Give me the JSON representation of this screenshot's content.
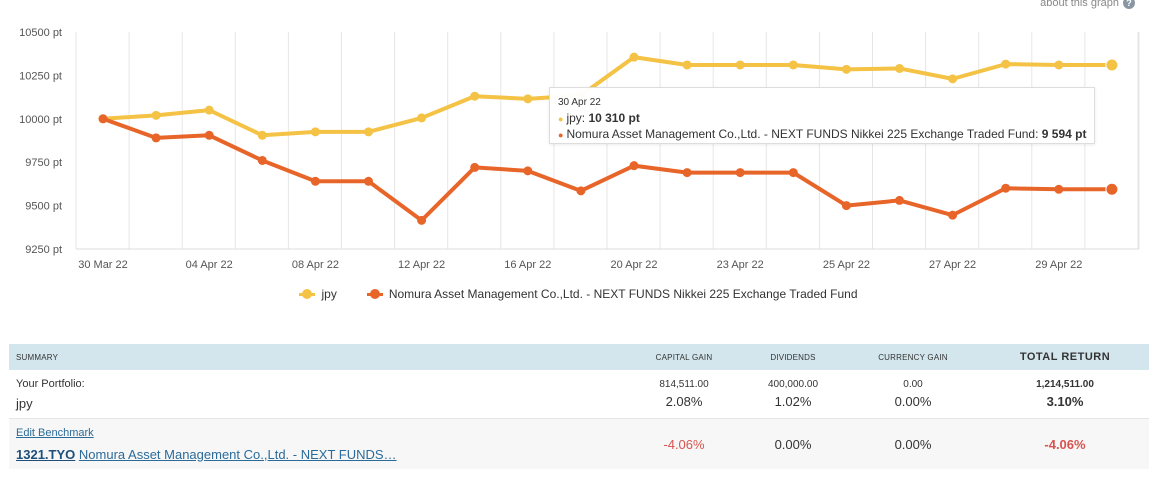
{
  "about": {
    "label": "about this graph",
    "icon": "help-icon"
  },
  "chart_data": {
    "type": "line",
    "ylim": [
      9250,
      10500
    ],
    "y_ticks": [
      9250,
      9500,
      9750,
      10000,
      10250,
      10500
    ],
    "y_tick_labels": [
      "9250 pt",
      "9500 pt",
      "9750 pt",
      "10000 pt",
      "10250 pt",
      "10500 pt"
    ],
    "x": [
      "30 Mar 22",
      "1 Apr 22",
      "04 Apr 22",
      "5 Apr 22",
      "08 Apr 22",
      "11 Apr 22",
      "12 Apr 22",
      "14 Apr 22",
      "16 Apr 22",
      "19 Apr 22",
      "20 Apr 22",
      "21 Apr 22",
      "23 Apr 22",
      "24 Apr 22",
      "25 Apr 22",
      "26 Apr 22",
      "27 Apr 22",
      "28 Apr 22",
      "29 Apr 22",
      "30 Apr 22"
    ],
    "x_tick_labels": [
      "30 Mar 22",
      "04 Apr 22",
      "08 Apr 22",
      "12 Apr 22",
      "16 Apr 22",
      "20 Apr 22",
      "23 Apr 22",
      "25 Apr 22",
      "27 Apr 22",
      "29 Apr 22"
    ],
    "grid": true,
    "legend_position": "bottom",
    "series": [
      {
        "name": "jpy",
        "color": "#f4c244",
        "values": [
          10000,
          10020,
          10050,
          9905,
          9925,
          9925,
          10005,
          10130,
          10115,
          10135,
          10355,
          10310,
          10310,
          10310,
          10285,
          10290,
          10230,
          10315,
          10310,
          10310
        ]
      },
      {
        "name": "Nomura Asset Management Co.,Ltd. - NEXT FUNDS Nikkei 225 Exchange Traded Fund",
        "color": "#e8652a",
        "values": [
          10000,
          9890,
          9905,
          9760,
          9640,
          9640,
          9415,
          9720,
          9700,
          9585,
          9730,
          9690,
          9690,
          9690,
          9500,
          9530,
          9445,
          9600,
          9594,
          9594
        ]
      }
    ]
  },
  "tooltip": {
    "date": "30 Apr 22",
    "rows": [
      {
        "label": "jpy: ",
        "value": "10 310 pt",
        "color": "#f4c244"
      },
      {
        "label": "Nomura Asset Management Co.,Ltd. - NEXT FUNDS Nikkei 225 Exchange Traded Fund: ",
        "value": "9 594 pt",
        "color": "#e8652a"
      }
    ]
  },
  "summary": {
    "headers": {
      "summary": "Summary",
      "capital_gain": "Capital Gain",
      "dividends": "Dividends",
      "currency_gain": "Currency Gain",
      "total_return": "Total Return"
    },
    "portfolio": {
      "label": "Your Portfolio:",
      "name": "jpy",
      "capital_gain_amount": "814,511.00",
      "capital_gain_pct": "2.08%",
      "dividends_amount": "400,000.00",
      "dividends_pct": "1.02%",
      "currency_gain_amount": "0.00",
      "currency_gain_pct": "0.00%",
      "total_return_amount": "1,214,511.00",
      "total_return_pct": "3.10%"
    },
    "benchmark": {
      "edit_label": "Edit Benchmark",
      "ticker": "1321.TYO",
      "name": "Nomura Asset Management Co.,Ltd. - NEXT FUNDS…",
      "capital_gain_pct": "-4.06%",
      "dividends_pct": "0.00%",
      "currency_gain_pct": "0.00%",
      "total_return_pct": "-4.06%"
    }
  }
}
